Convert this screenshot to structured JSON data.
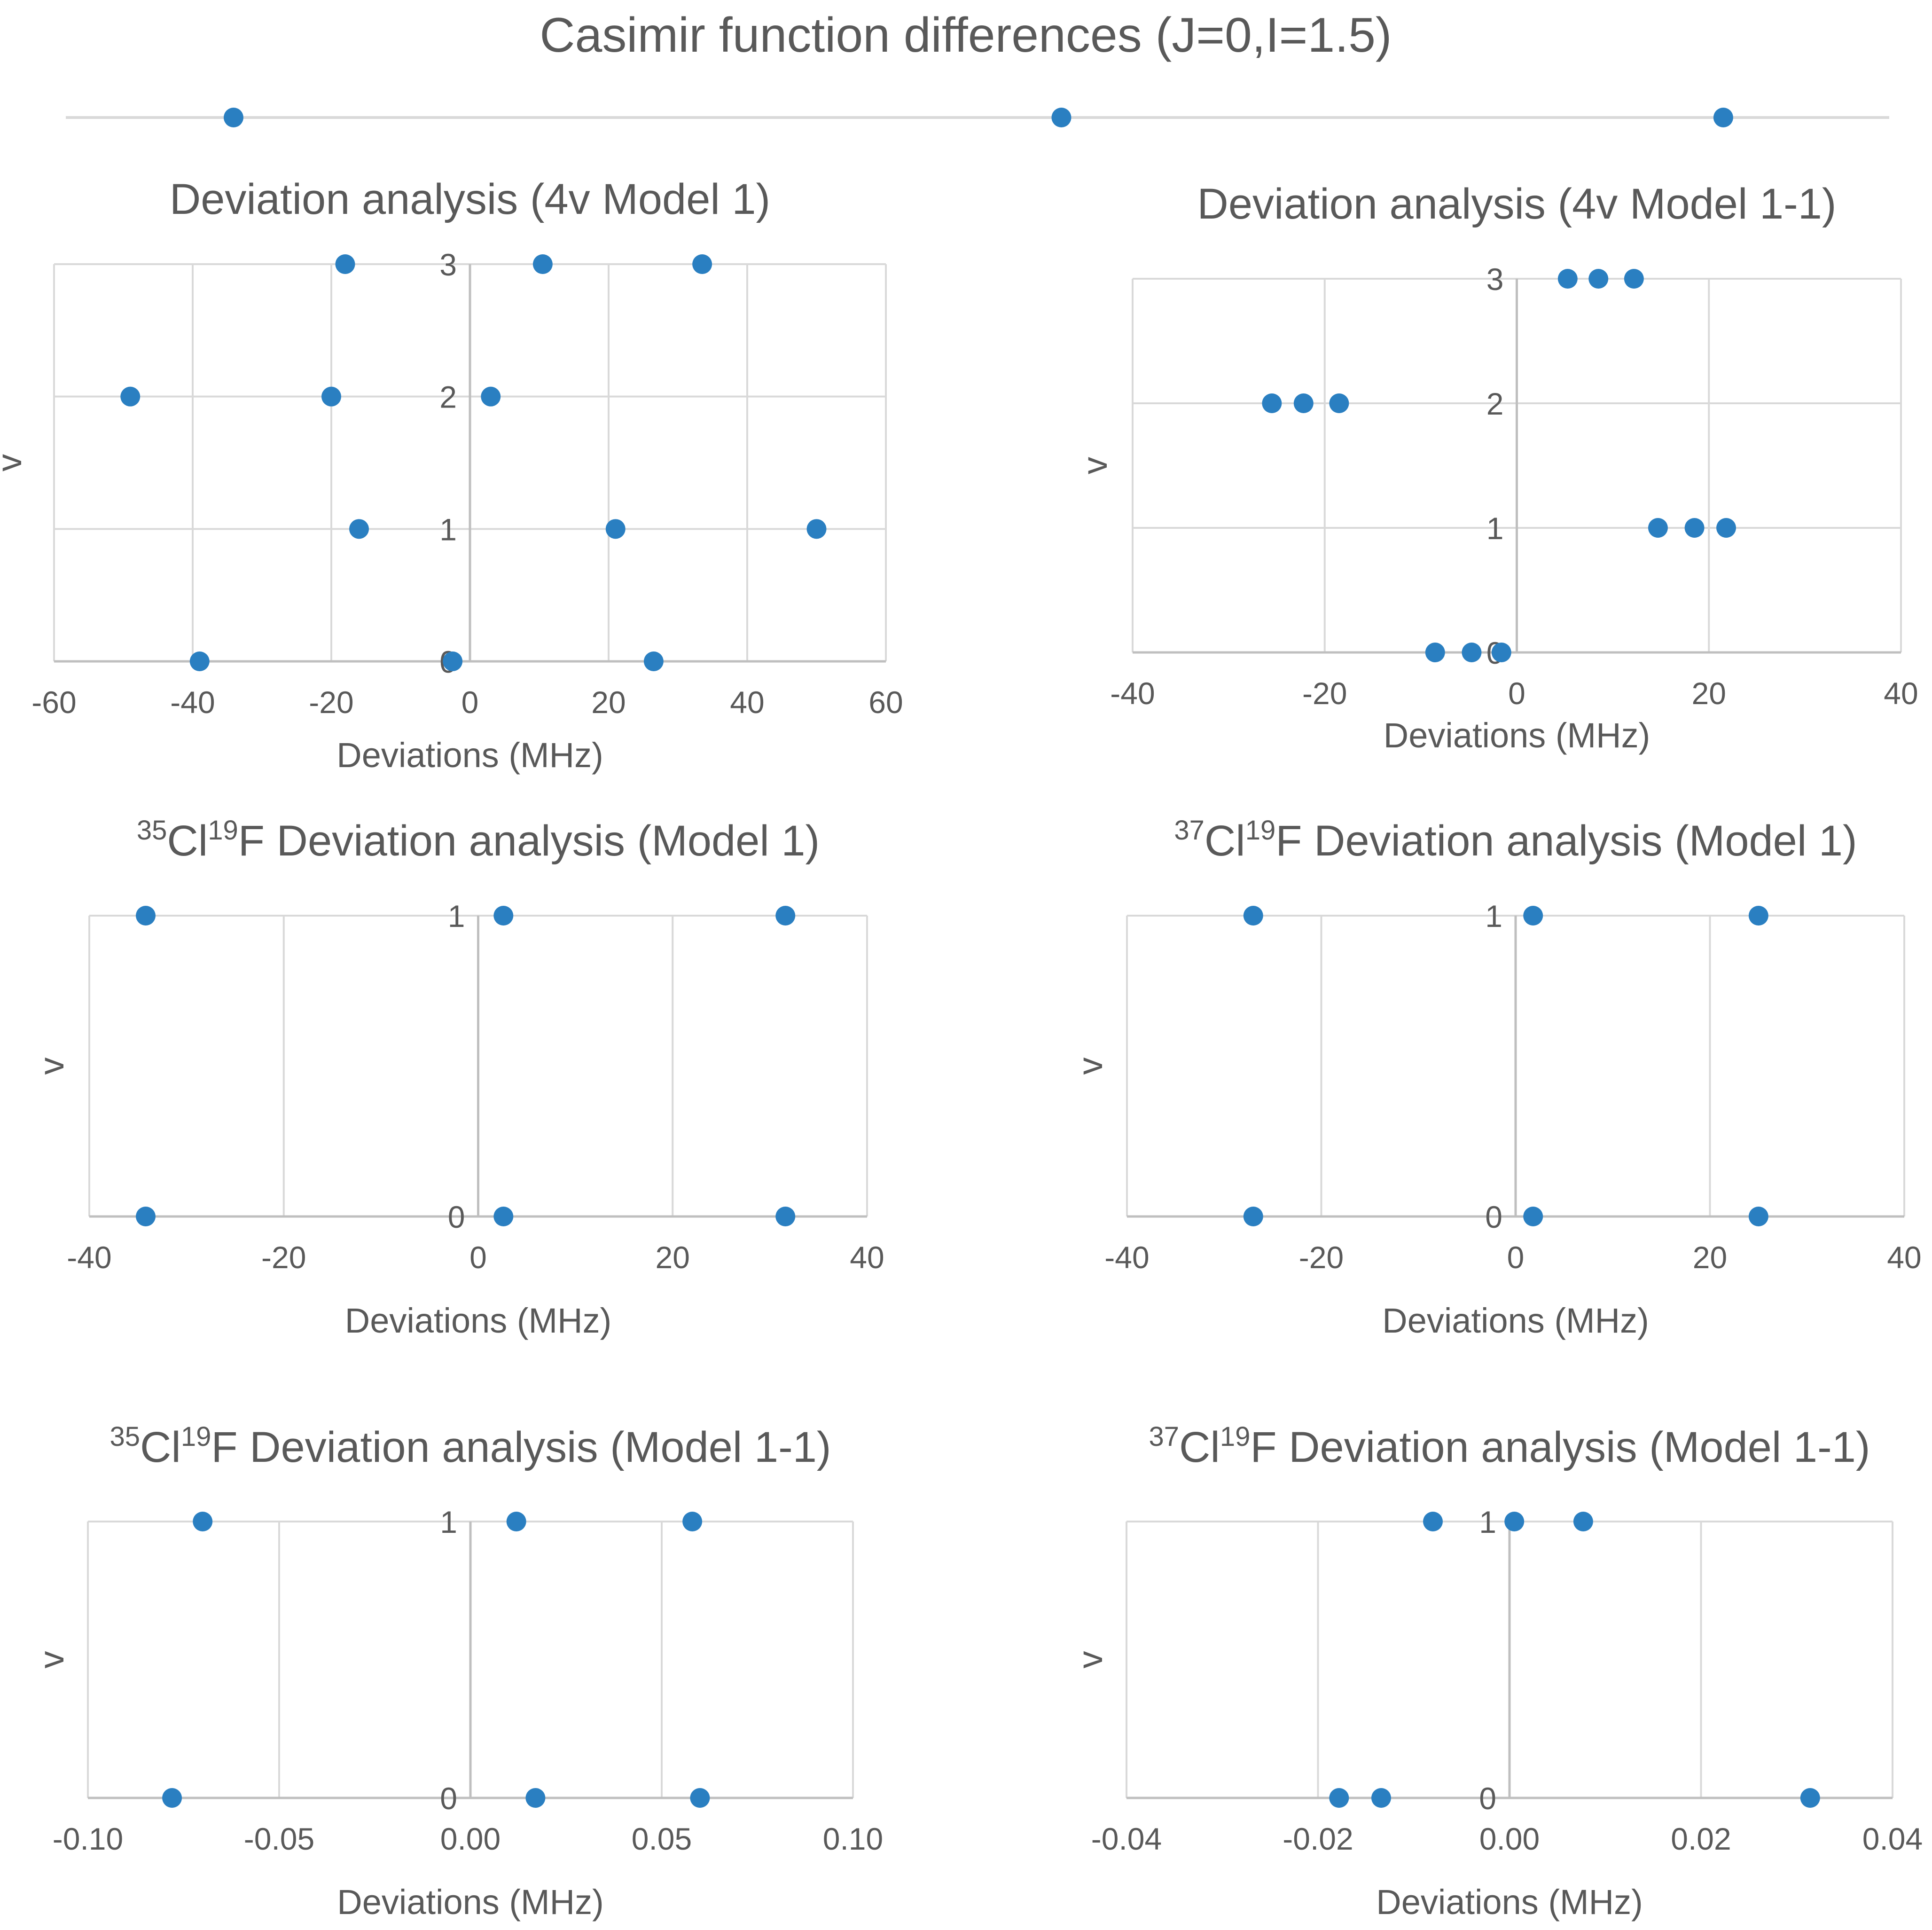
{
  "page_title": "Casimir function differences (J=0,I=1.5)",
  "colors": {
    "marker": "#2A7FC1",
    "grid": "#D9D9D9",
    "axis": "#BFBFBF",
    "text": "#595959"
  },
  "chart_data": [
    {
      "type": "scatter",
      "id": "top-strip",
      "title": "",
      "xlabel": "",
      "ylabel": "",
      "xlim": [
        0,
        1
      ],
      "points": [
        [
          0.092,
          0
        ],
        [
          0.546,
          0
        ],
        [
          0.909,
          0
        ]
      ]
    },
    {
      "type": "scatter",
      "id": "model1-4v",
      "title": "Deviation analysis (4v Model 1)",
      "title_parts": [
        {
          "text": "Deviation analysis (4v Model 1)",
          "sup": false
        }
      ],
      "xlabel": "Deviations (MHz)",
      "ylabel": "v",
      "xlim": [
        -60,
        60
      ],
      "ylim": [
        0,
        3
      ],
      "xticks": [
        -60,
        -40,
        -20,
        0,
        20,
        40,
        60
      ],
      "xtick_labels": [
        "-60",
        "-40",
        "-20",
        "0",
        "20",
        "40",
        "60"
      ],
      "yticks": [
        0,
        1,
        2,
        3
      ],
      "ytick_labels": [
        "0",
        "1",
        "2",
        "3"
      ],
      "points": [
        [
          -18,
          3
        ],
        [
          10.5,
          3
        ],
        [
          33.5,
          3
        ],
        [
          -49,
          2
        ],
        [
          -20,
          2
        ],
        [
          3,
          2
        ],
        [
          -16,
          1
        ],
        [
          21,
          1
        ],
        [
          50,
          1
        ],
        [
          -39,
          0
        ],
        [
          -2.5,
          0
        ],
        [
          26.5,
          0
        ]
      ]
    },
    {
      "type": "scatter",
      "id": "model1-1-4v",
      "title": "Deviation analysis (4v Model 1-1)",
      "title_parts": [
        {
          "text": "Deviation analysis (4v Model 1-1)",
          "sup": false
        }
      ],
      "xlabel": "Deviations (MHz)",
      "ylabel": "v",
      "xlim": [
        -40,
        40
      ],
      "ylim": [
        0,
        3
      ],
      "xticks": [
        -40,
        -20,
        0,
        20,
        40
      ],
      "xtick_labels": [
        "-40",
        "-20",
        "0",
        "20",
        "40"
      ],
      "yticks": [
        0,
        1,
        2,
        3
      ],
      "ytick_labels": [
        "0",
        "1",
        "2",
        "3"
      ],
      "points": [
        [
          5.3,
          3
        ],
        [
          8.5,
          3
        ],
        [
          12.2,
          3
        ],
        [
          -25.5,
          2
        ],
        [
          -22.2,
          2
        ],
        [
          -18.5,
          2
        ],
        [
          14.7,
          1
        ],
        [
          18.5,
          1
        ],
        [
          21.8,
          1
        ],
        [
          -8.5,
          0
        ],
        [
          -4.7,
          0
        ],
        [
          -1.6,
          0
        ]
      ]
    },
    {
      "type": "scatter",
      "id": "cl35f-model1",
      "title": "35Cl19F Deviation analysis (Model 1)",
      "title_parts": [
        {
          "text": "35",
          "sup": true
        },
        {
          "text": "Cl",
          "sup": false
        },
        {
          "text": "19",
          "sup": true
        },
        {
          "text": "F  Deviation analysis (Model 1)",
          "sup": false
        }
      ],
      "xlabel": "Deviations (MHz)",
      "ylabel": "v",
      "xlim": [
        -40,
        40
      ],
      "ylim": [
        0,
        1
      ],
      "xticks": [
        -40,
        -20,
        0,
        20,
        40
      ],
      "xtick_labels": [
        "-40",
        "-20",
        "0",
        "20",
        "40"
      ],
      "yticks": [
        0,
        1
      ],
      "ytick_labels": [
        "0",
        "1"
      ],
      "points": [
        [
          -34.2,
          1
        ],
        [
          2.6,
          1
        ],
        [
          31.6,
          1
        ],
        [
          -34.2,
          0
        ],
        [
          2.6,
          0
        ],
        [
          31.6,
          0
        ]
      ]
    },
    {
      "type": "scatter",
      "id": "cl37f-model1",
      "title": "37Cl19F Deviation analysis (Model 1)",
      "title_parts": [
        {
          "text": "37",
          "sup": true
        },
        {
          "text": "Cl",
          "sup": false
        },
        {
          "text": "19",
          "sup": true
        },
        {
          "text": "F  Deviation analysis (Model 1)",
          "sup": false
        }
      ],
      "xlabel": "Deviations (MHz)",
      "ylabel": "v",
      "xlim": [
        -40,
        40
      ],
      "ylim": [
        0,
        1
      ],
      "xticks": [
        -40,
        -20,
        0,
        20,
        40
      ],
      "xtick_labels": [
        "-40",
        "-20",
        "0",
        "20",
        "40"
      ],
      "yticks": [
        0,
        1
      ],
      "ytick_labels": [
        "0",
        "1"
      ],
      "points": [
        [
          -27,
          1
        ],
        [
          1.8,
          1
        ],
        [
          25,
          1
        ],
        [
          -27,
          0
        ],
        [
          1.8,
          0
        ],
        [
          25,
          0
        ]
      ]
    },
    {
      "type": "scatter",
      "id": "cl35f-model1-1",
      "title": "35Cl19F Deviation analysis (Model 1-1)",
      "title_parts": [
        {
          "text": "35",
          "sup": true
        },
        {
          "text": "Cl",
          "sup": false
        },
        {
          "text": "19",
          "sup": true
        },
        {
          "text": "F  Deviation analysis (Model 1-1)",
          "sup": false
        }
      ],
      "xlabel": "Deviations (MHz)",
      "ylabel": "v",
      "xlim": [
        -0.1,
        0.1
      ],
      "ylim": [
        0,
        1
      ],
      "xticks": [
        -0.1,
        -0.05,
        0,
        0.05,
        0.1
      ],
      "xtick_labels": [
        "-0.10",
        "-0.05",
        "0.00",
        "0.05",
        "0.10"
      ],
      "yticks": [
        0,
        1
      ],
      "ytick_labels": [
        "0",
        "1"
      ],
      "points": [
        [
          -0.07,
          1
        ],
        [
          0.012,
          1
        ],
        [
          0.058,
          1
        ],
        [
          -0.078,
          0
        ],
        [
          0.017,
          0
        ],
        [
          0.06,
          0
        ]
      ]
    },
    {
      "type": "scatter",
      "id": "cl37f-model1-1",
      "title": "37Cl19F Deviation analysis (Model 1-1)",
      "title_parts": [
        {
          "text": "37",
          "sup": true
        },
        {
          "text": "Cl",
          "sup": false
        },
        {
          "text": "19",
          "sup": true
        },
        {
          "text": "F  Deviation analysis (Model 1-1)",
          "sup": false
        }
      ],
      "xlabel": "Deviations (MHz)",
      "ylabel": "v",
      "xlim": [
        -0.04,
        0.04
      ],
      "ylim": [
        0,
        1
      ],
      "xticks": [
        -0.04,
        -0.02,
        0,
        0.02,
        0.04
      ],
      "xtick_labels": [
        "-0.04",
        "-0.02",
        "0.00",
        "0.02",
        "0.04"
      ],
      "yticks": [
        0,
        1
      ],
      "ytick_labels": [
        "0",
        "1"
      ],
      "points": [
        [
          -0.008,
          1
        ],
        [
          0.0005,
          1
        ],
        [
          0.0077,
          1
        ],
        [
          -0.0178,
          0
        ],
        [
          -0.0134,
          0
        ],
        [
          0.0314,
          0
        ]
      ]
    }
  ]
}
